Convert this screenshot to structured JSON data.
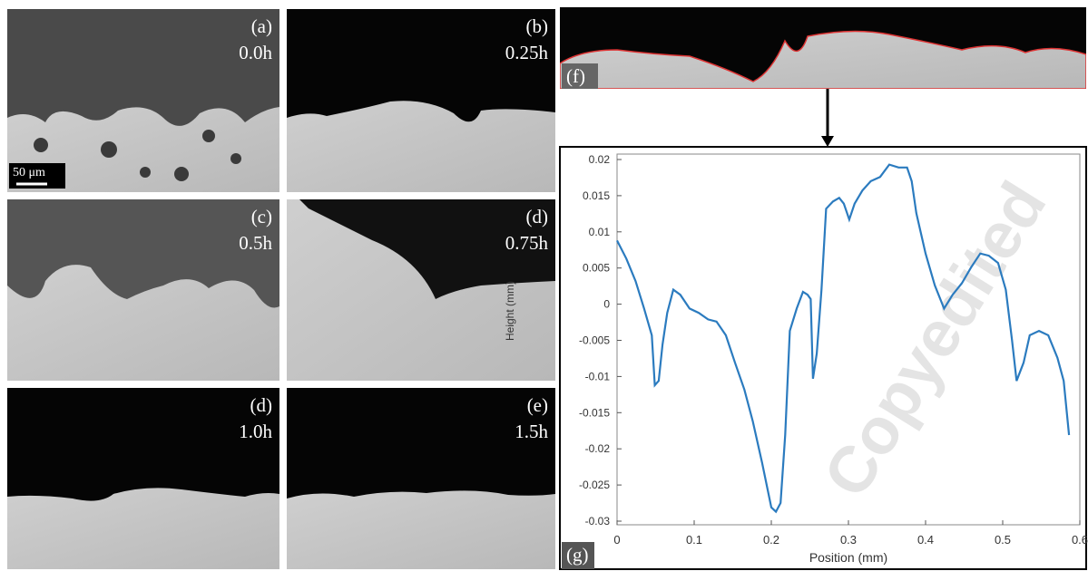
{
  "panels": [
    {
      "label": "(a)",
      "time": "0.0h"
    },
    {
      "label": "(b)",
      "time": "0.25h"
    },
    {
      "label": "(c)",
      "time": "0.5h"
    },
    {
      "label": "(d)",
      "time": "0.75h"
    },
    {
      "label": "(d)",
      "time": "1.0h"
    },
    {
      "label": "(e)",
      "time": "1.5h"
    }
  ],
  "scale_bar": "50 μm",
  "profile_panel": {
    "label": "(f)"
  },
  "watermark": "Copyedited",
  "chart_data": {
    "type": "line",
    "panel_label": "(g)",
    "x_label": "Position (mm)",
    "y_label": "Height (mm)",
    "xlim": [
      0,
      0.6
    ],
    "ylim": [
      -0.03,
      0.02
    ],
    "xticks": [
      0,
      0.1,
      0.2,
      0.3,
      0.4,
      0.5,
      0.6
    ],
    "yticks": [
      0.02,
      0.015,
      0.01,
      0.005,
      0,
      -0.005,
      -0.01,
      -0.015,
      -0.02,
      -0.025,
      -0.03
    ],
    "color": "#2b7bbf",
    "x": [
      0,
      0.012,
      0.024,
      0.035,
      0.045,
      0.049,
      0.054,
      0.059,
      0.065,
      0.073,
      0.082,
      0.094,
      0.106,
      0.118,
      0.129,
      0.141,
      0.153,
      0.165,
      0.176,
      0.188,
      0.194,
      0.2,
      0.206,
      0.212,
      0.218,
      0.224,
      0.233,
      0.241,
      0.247,
      0.251,
      0.254,
      0.259,
      0.265,
      0.271,
      0.28,
      0.288,
      0.294,
      0.301,
      0.308,
      0.318,
      0.329,
      0.341,
      0.353,
      0.365,
      0.376,
      0.382,
      0.388,
      0.4,
      0.412,
      0.424,
      0.435,
      0.447,
      0.459,
      0.471,
      0.482,
      0.494,
      0.504,
      0.512,
      0.518,
      0.527,
      0.535,
      0.547,
      0.559,
      0.571,
      0.579,
      0.586
    ],
    "values": [
      0.0088,
      0.0063,
      0.0032,
      -0.0006,
      -0.0043,
      -0.0112,
      -0.0106,
      -0.0056,
      -0.0012,
      0.002,
      0.0013,
      -0.0006,
      -0.0012,
      -0.0021,
      -0.0024,
      -0.0043,
      -0.0081,
      -0.0118,
      -0.0162,
      -0.0219,
      -0.025,
      -0.0281,
      -0.0287,
      -0.0275,
      -0.0181,
      -0.0037,
      -0.0006,
      0.0017,
      0.0013,
      0.0007,
      -0.0103,
      -0.0068,
      0.002,
      0.0132,
      0.0142,
      0.0147,
      0.0139,
      0.0117,
      0.0139,
      0.0157,
      0.017,
      0.0176,
      0.0193,
      0.0189,
      0.0189,
      0.017,
      0.0126,
      0.007,
      0.0026,
      -0.0006,
      0.0013,
      0.0029,
      0.0051,
      0.007,
      0.0067,
      0.0057,
      0.002,
      -0.0049,
      -0.0106,
      -0.0081,
      -0.0043,
      -0.0037,
      -0.0043,
      -0.0074,
      -0.0106,
      -0.0181
    ]
  }
}
